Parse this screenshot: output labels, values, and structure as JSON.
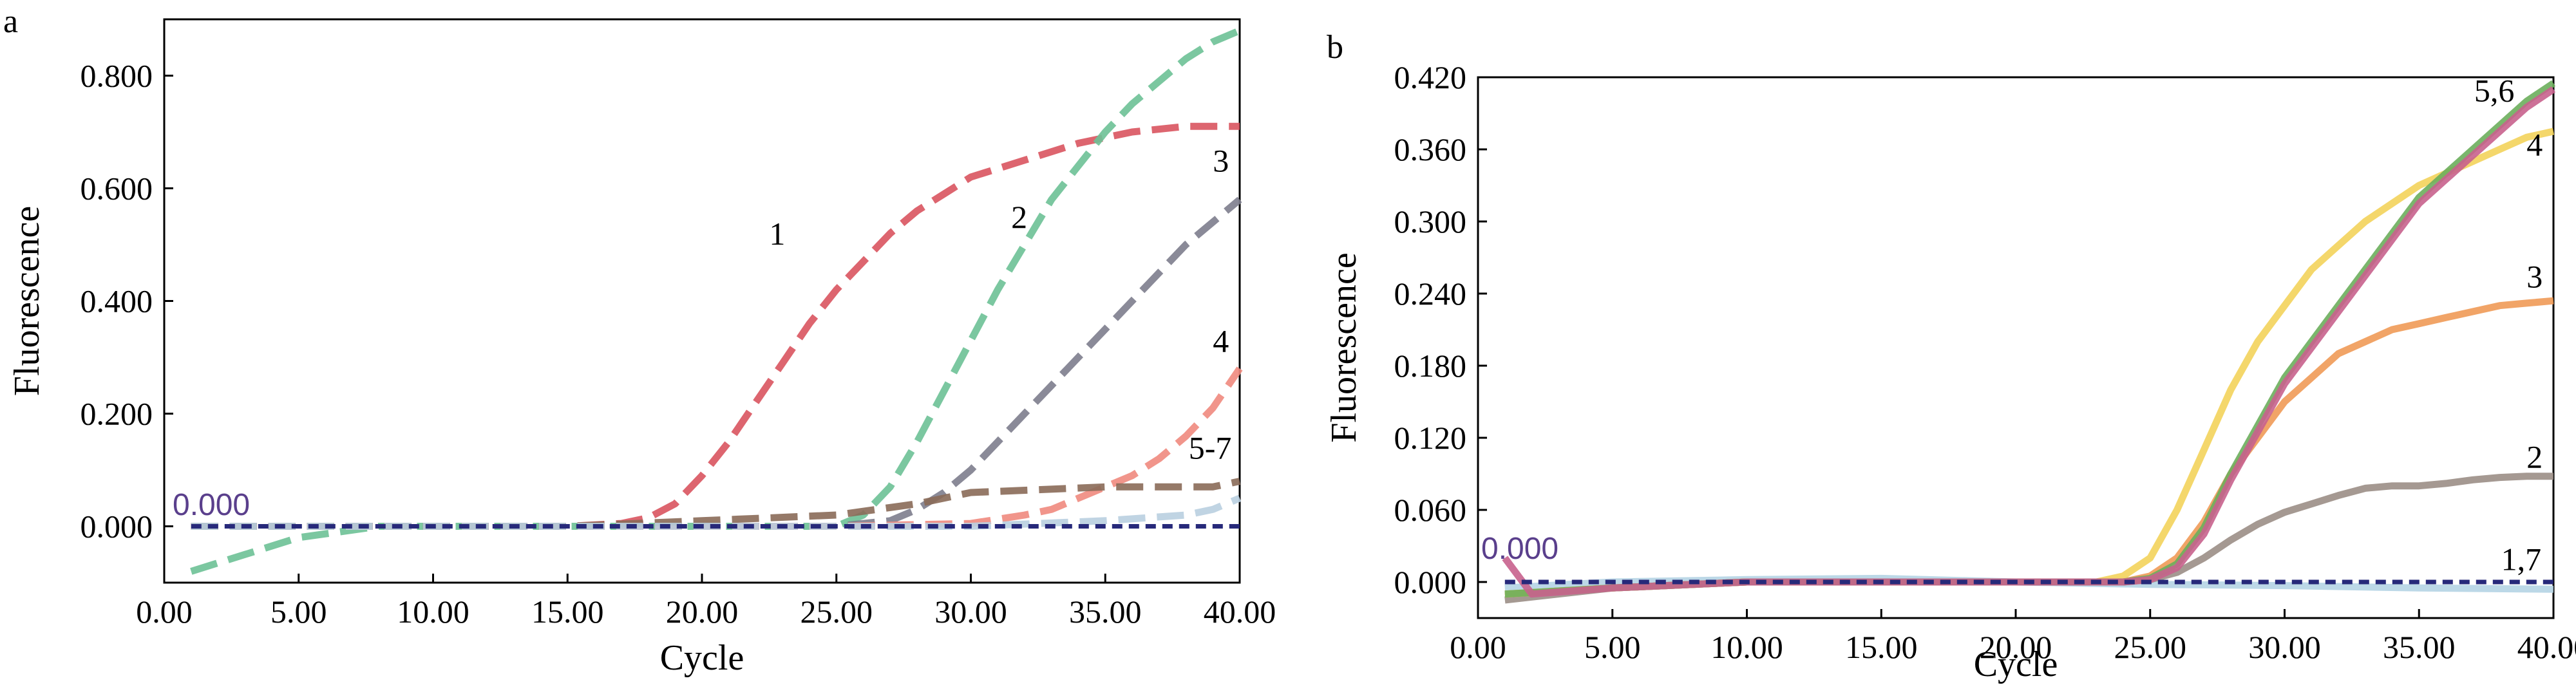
{
  "chart_data": [
    {
      "type": "line",
      "panel_label": "a",
      "xlabel": "Cycle",
      "ylabel": "Fluorescence",
      "xlim": [
        0,
        40
      ],
      "ylim": [
        -0.1,
        0.9
      ],
      "x_ticks": [
        "0.00",
        "5.00",
        "10.00",
        "15.00",
        "20.00",
        "25.00",
        "30.00",
        "35.00",
        "40.00"
      ],
      "y_ticks": [
        "0.000",
        "0.200",
        "0.400",
        "0.600",
        "0.800"
      ],
      "baseline_label": "0.000",
      "baseline_value": 0.0,
      "line_style": "dashed",
      "grid": false,
      "series": [
        {
          "name": "1",
          "color": "#d9545f",
          "x": [
            1,
            5,
            10,
            15,
            17,
            18,
            19,
            20,
            21,
            22,
            23,
            24,
            25,
            26,
            27,
            28,
            29,
            30,
            32,
            34,
            36,
            38,
            40
          ],
          "y": [
            0.0,
            0.0,
            0.0,
            0.0,
            0.005,
            0.015,
            0.04,
            0.09,
            0.15,
            0.22,
            0.29,
            0.36,
            0.42,
            0.47,
            0.52,
            0.56,
            0.59,
            0.62,
            0.65,
            0.68,
            0.7,
            0.71,
            0.71
          ]
        },
        {
          "name": "2",
          "color": "#6dc196",
          "x": [
            1,
            3,
            5,
            8,
            10,
            15,
            20,
            25,
            26,
            27,
            28,
            29,
            30,
            31,
            32,
            33,
            34,
            35,
            36,
            37,
            38,
            39,
            40
          ],
          "y": [
            -0.08,
            -0.05,
            -0.02,
            0.0,
            0.0,
            0.0,
            0.0,
            0.0,
            0.02,
            0.07,
            0.15,
            0.24,
            0.33,
            0.42,
            0.5,
            0.58,
            0.64,
            0.7,
            0.75,
            0.79,
            0.83,
            0.86,
            0.88
          ]
        },
        {
          "name": "3",
          "color": "#7d7d8d",
          "x": [
            1,
            5,
            10,
            15,
            20,
            25,
            27,
            28,
            29,
            30,
            31,
            32,
            33,
            34,
            35,
            36,
            37,
            38,
            39,
            40
          ],
          "y": [
            0.0,
            0.0,
            0.0,
            0.0,
            0.0,
            0.0,
            0.01,
            0.03,
            0.06,
            0.1,
            0.15,
            0.2,
            0.25,
            0.3,
            0.35,
            0.4,
            0.45,
            0.5,
            0.54,
            0.58
          ]
        },
        {
          "name": "4",
          "color": "#f08a7e",
          "x": [
            1,
            5,
            10,
            15,
            20,
            25,
            30,
            32,
            33,
            34,
            35,
            36,
            37,
            38,
            39,
            40
          ],
          "y": [
            0.0,
            0.0,
            0.0,
            0.0,
            0.0,
            0.0,
            0.005,
            0.02,
            0.03,
            0.05,
            0.07,
            0.09,
            0.12,
            0.16,
            0.21,
            0.28
          ]
        },
        {
          "name": "5",
          "color": "#8a6a58",
          "x": [
            1,
            5,
            10,
            15,
            20,
            25,
            28,
            30,
            35,
            38,
            39,
            40
          ],
          "y": [
            0.0,
            0.0,
            0.0,
            0.0,
            0.01,
            0.02,
            0.04,
            0.06,
            0.07,
            0.07,
            0.07,
            0.08
          ]
        },
        {
          "name": "6",
          "color": "#b9cfe0",
          "x": [
            1,
            5,
            10,
            15,
            20,
            25,
            30,
            35,
            38,
            39,
            40
          ],
          "y": [
            0.0,
            0.0,
            0.0,
            0.0,
            0.0,
            0.0,
            0.0,
            0.01,
            0.02,
            0.03,
            0.05
          ]
        },
        {
          "name": "7",
          "color": "#27297a",
          "x": [
            1,
            40
          ],
          "y": [
            0.0,
            0.0
          ]
        }
      ],
      "annotations": [
        {
          "text": "1",
          "x": 22.8,
          "y": 0.5
        },
        {
          "text": "2",
          "x": 31.8,
          "y": 0.53
        },
        {
          "text": "3",
          "x": 39.3,
          "y": 0.63
        },
        {
          "text": "4",
          "x": 39.3,
          "y": 0.31
        },
        {
          "text": "5-7",
          "x": 38.9,
          "y": 0.12
        }
      ]
    },
    {
      "type": "line",
      "panel_label": "b",
      "xlabel": "Cycle",
      "ylabel": "Fluorescence",
      "xlim": [
        0,
        40
      ],
      "ylim": [
        -0.03,
        0.42
      ],
      "x_ticks": [
        "0.00",
        "5.00",
        "10.00",
        "15.00",
        "20.00",
        "25.00",
        "30.00",
        "35.00",
        "40.00"
      ],
      "y_ticks": [
        "0.000",
        "0.060",
        "0.120",
        "0.180",
        "0.240",
        "0.300",
        "0.360",
        "0.420"
      ],
      "baseline_label": "0.000",
      "baseline_value": 0.0,
      "line_style": "solid",
      "grid": false,
      "series": [
        {
          "name": "1",
          "color": "#b5d4e4",
          "x": [
            1,
            5,
            10,
            15,
            20,
            25,
            30,
            35,
            40
          ],
          "y": [
            -0.005,
            0.0,
            0.002,
            0.003,
            0.0,
            -0.002,
            -0.003,
            -0.005,
            -0.006
          ]
        },
        {
          "name": "2",
          "color": "#9b8e86",
          "x": [
            1,
            5,
            10,
            15,
            20,
            24,
            25,
            26,
            27,
            28,
            29,
            30,
            31,
            32,
            33,
            34,
            35,
            36,
            37,
            38,
            39,
            40
          ],
          "y": [
            -0.015,
            -0.005,
            0.0,
            0.0,
            0.0,
            0.0,
            0.002,
            0.008,
            0.02,
            0.035,
            0.048,
            0.058,
            0.065,
            0.072,
            0.078,
            0.08,
            0.08,
            0.082,
            0.085,
            0.087,
            0.088,
            0.088
          ]
        },
        {
          "name": "3",
          "color": "#ef9a57",
          "x": [
            1,
            5,
            10,
            15,
            20,
            24,
            25,
            26,
            27,
            28,
            29,
            30,
            31,
            32,
            33,
            34,
            35,
            36,
            37,
            38,
            39,
            40
          ],
          "y": [
            -0.01,
            -0.005,
            0.0,
            0.0,
            0.0,
            0.0,
            0.005,
            0.02,
            0.05,
            0.09,
            0.12,
            0.15,
            0.17,
            0.19,
            0.2,
            0.21,
            0.215,
            0.22,
            0.225,
            0.23,
            0.232,
            0.234
          ]
        },
        {
          "name": "4",
          "color": "#f3d35b",
          "x": [
            1,
            5,
            10,
            15,
            20,
            23,
            24,
            25,
            26,
            27,
            28,
            29,
            30,
            31,
            32,
            33,
            34,
            35,
            36,
            37,
            38,
            39,
            40
          ],
          "y": [
            -0.01,
            -0.005,
            0.0,
            0.0,
            0.0,
            0.0,
            0.005,
            0.02,
            0.06,
            0.11,
            0.16,
            0.2,
            0.23,
            0.26,
            0.28,
            0.3,
            0.315,
            0.33,
            0.34,
            0.35,
            0.36,
            0.37,
            0.375
          ]
        },
        {
          "name": "5",
          "color": "#6cae5c",
          "x": [
            1,
            5,
            10,
            15,
            20,
            24,
            25,
            26,
            27,
            28,
            29,
            30,
            31,
            32,
            33,
            34,
            35,
            36,
            37,
            38,
            39,
            40
          ],
          "y": [
            -0.01,
            -0.005,
            0.0,
            0.0,
            0.0,
            0.0,
            0.003,
            0.015,
            0.045,
            0.09,
            0.13,
            0.17,
            0.2,
            0.23,
            0.26,
            0.29,
            0.32,
            0.34,
            0.36,
            0.38,
            0.4,
            0.415
          ]
        },
        {
          "name": "6",
          "color": "#c8628d",
          "x": [
            1,
            2,
            5,
            10,
            15,
            20,
            24,
            25,
            26,
            27,
            28,
            29,
            30,
            31,
            32,
            33,
            34,
            35,
            36,
            37,
            38,
            39,
            40
          ],
          "y": [
            0.02,
            -0.01,
            -0.005,
            0.0,
            0.0,
            0.0,
            0.0,
            0.002,
            0.012,
            0.04,
            0.085,
            0.125,
            0.165,
            0.195,
            0.225,
            0.255,
            0.285,
            0.315,
            0.335,
            0.355,
            0.375,
            0.395,
            0.41
          ]
        },
        {
          "name": "7",
          "color": "#27297a",
          "x": [
            1,
            40
          ],
          "y": [
            0.0,
            0.0
          ]
        }
      ],
      "annotations": [
        {
          "text": "5,6",
          "x": 37.8,
          "y": 0.4
        },
        {
          "text": "4",
          "x": 39.3,
          "y": 0.355
        },
        {
          "text": "3",
          "x": 39.3,
          "y": 0.245
        },
        {
          "text": "2",
          "x": 39.3,
          "y": 0.095
        },
        {
          "text": "1,7",
          "x": 38.8,
          "y": 0.01
        }
      ]
    }
  ]
}
